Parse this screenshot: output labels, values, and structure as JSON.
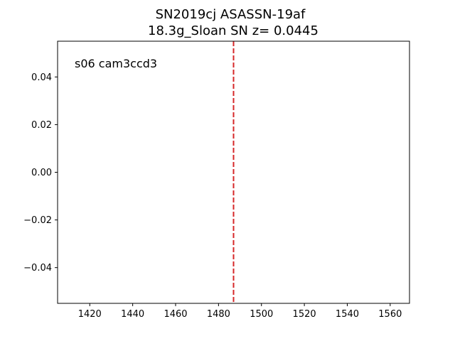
{
  "chart_data": {
    "type": "line",
    "title_lines": [
      "SN2019cj  ASASSN-19af",
      "18.3g_Sloan SN z= 0.0445"
    ],
    "xlabel": "",
    "ylabel": "",
    "xlim": [
      1405,
      1569
    ],
    "ylim": [
      -0.055,
      0.055
    ],
    "x_ticks": [
      1420,
      1440,
      1460,
      1480,
      1500,
      1520,
      1540,
      1560
    ],
    "x_tick_labels": [
      "1420",
      "1440",
      "1460",
      "1480",
      "1500",
      "1520",
      "1540",
      "1560"
    ],
    "y_ticks": [
      0.04,
      0.02,
      0.0,
      -0.02,
      -0.04
    ],
    "y_tick_labels": [
      "0.04",
      "0.02",
      "0.00",
      "−0.02",
      "−0.04"
    ],
    "series": [],
    "vlines": [
      {
        "x": 1487,
        "color": "#d62728",
        "style": "dashed"
      }
    ],
    "annotation": "s06 cam3ccd3",
    "grid": false
  }
}
